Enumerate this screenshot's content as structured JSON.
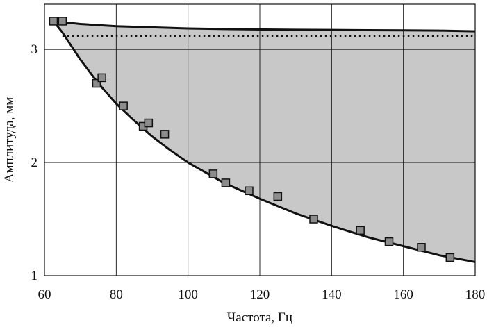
{
  "chart_data": {
    "type": "line",
    "title": "",
    "xlabel": "Частота, Гц",
    "ylabel": "Амплитуда, мм",
    "xlim": [
      60,
      180
    ],
    "ylim": [
      1,
      3.4
    ],
    "x_ticks": [
      60,
      80,
      100,
      120,
      140,
      160,
      180
    ],
    "y_ticks": [
      1,
      2,
      3
    ],
    "x_tick_labels": [
      "60",
      "80",
      "100",
      "120",
      "140",
      "160",
      "180"
    ],
    "y_tick_labels": [
      "1",
      "2",
      "3"
    ],
    "grid": true,
    "legend": "none",
    "colors": {
      "fill": "#c8c8c8",
      "line": "#111111",
      "marker_fill": "#8c8c8c",
      "marker_stroke": "#111111",
      "grid": "#111111"
    },
    "series": [
      {
        "style": "solid",
        "x": [
          62.5,
          70,
          80,
          90,
          100,
          110,
          120,
          130,
          140,
          150,
          160,
          170,
          180
        ],
        "y": [
          3.25,
          3.225,
          3.205,
          3.195,
          3.185,
          3.18,
          3.176,
          3.174,
          3.172,
          3.17,
          3.168,
          3.166,
          3.16
        ]
      },
      {
        "style": "dotted",
        "x": [
          65,
          180
        ],
        "y": [
          3.12,
          3.12
        ]
      },
      {
        "style": "solid",
        "x": [
          62.5,
          65,
          70,
          75,
          80,
          85,
          90,
          95,
          100,
          110,
          120,
          130,
          140,
          150,
          160,
          170,
          180
        ],
        "y": [
          3.25,
          3.15,
          2.91,
          2.7,
          2.52,
          2.37,
          2.23,
          2.11,
          2.0,
          1.82,
          1.68,
          1.55,
          1.44,
          1.34,
          1.26,
          1.18,
          1.12
        ]
      },
      {
        "style": "markers",
        "x": [
          62.5,
          65,
          74.5,
          76,
          82,
          87.5,
          89,
          93.5,
          107,
          110.5,
          117,
          125,
          135,
          148,
          156,
          165,
          173
        ],
        "y": [
          3.25,
          3.25,
          2.7,
          2.75,
          2.5,
          2.32,
          2.35,
          2.25,
          1.9,
          1.82,
          1.75,
          1.7,
          1.5,
          1.4,
          1.3,
          1.25,
          1.16
        ]
      }
    ]
  }
}
